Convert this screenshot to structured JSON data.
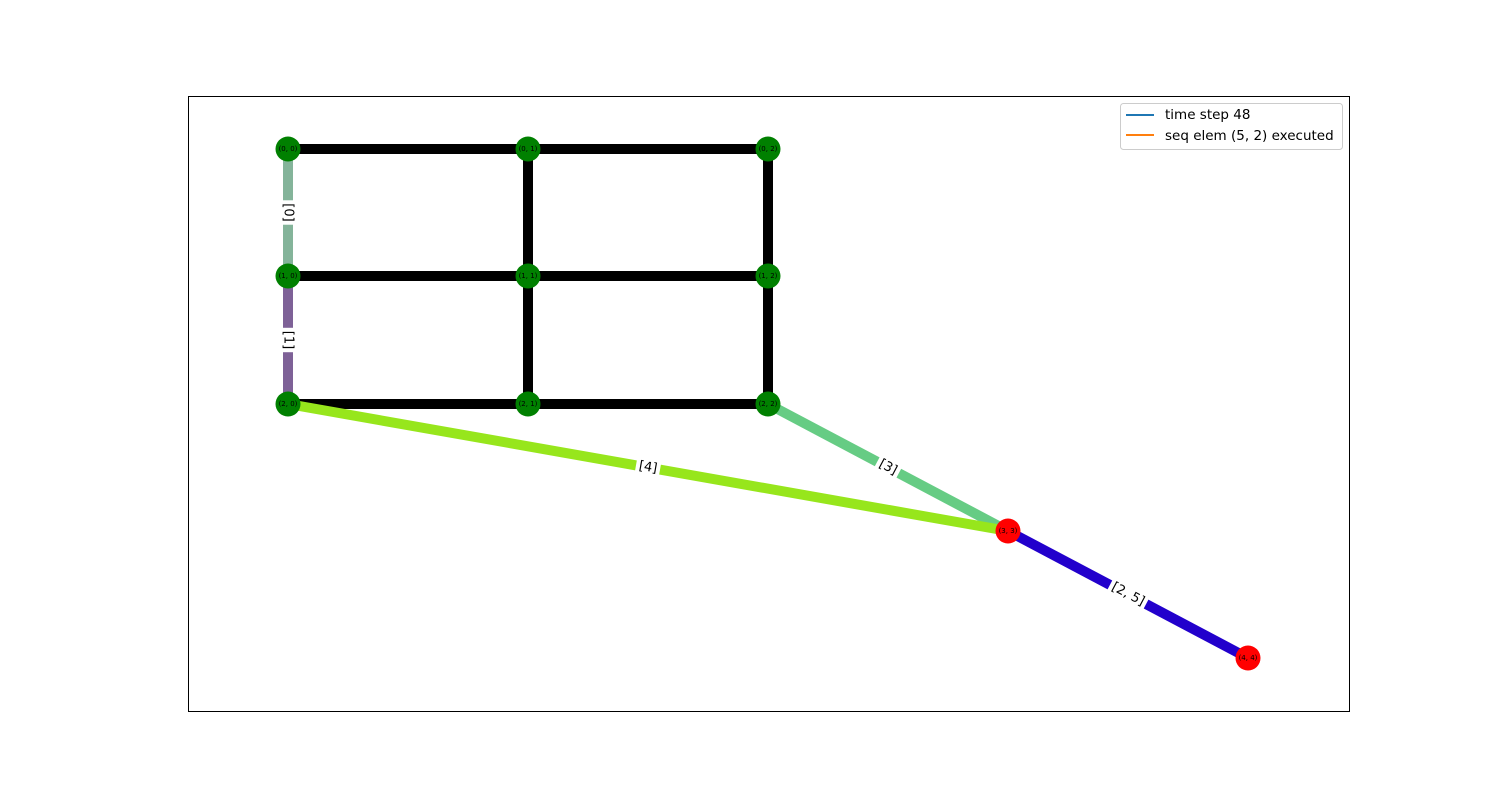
{
  "graph": {
    "nodes": [
      {
        "id": "n00",
        "label": "(0, 0)",
        "color": "#008000"
      },
      {
        "id": "n01",
        "label": "(0, 1)",
        "color": "#008000"
      },
      {
        "id": "n02",
        "label": "(0, 2)",
        "color": "#008000"
      },
      {
        "id": "n10",
        "label": "(1, 0)",
        "color": "#008000"
      },
      {
        "id": "n11",
        "label": "(1, 1)",
        "color": "#008000"
      },
      {
        "id": "n12",
        "label": "(1, 2)",
        "color": "#008000"
      },
      {
        "id": "n20",
        "label": "(2, 0)",
        "color": "#008000"
      },
      {
        "id": "n21",
        "label": "(2, 1)",
        "color": "#008000"
      },
      {
        "id": "n22",
        "label": "(2, 2)",
        "color": "#008000"
      },
      {
        "id": "n33",
        "label": "(3, 3)",
        "color": "#ff0000"
      },
      {
        "id": "n44",
        "label": "(4, 4)",
        "color": "#ff0000"
      }
    ],
    "edges": [
      {
        "from": "n00",
        "to": "n01",
        "color": "#000000",
        "label": ""
      },
      {
        "from": "n01",
        "to": "n02",
        "color": "#000000",
        "label": ""
      },
      {
        "from": "n10",
        "to": "n11",
        "color": "#000000",
        "label": ""
      },
      {
        "from": "n11",
        "to": "n12",
        "color": "#000000",
        "label": ""
      },
      {
        "from": "n20",
        "to": "n21",
        "color": "#000000",
        "label": ""
      },
      {
        "from": "n21",
        "to": "n22",
        "color": "#000000",
        "label": ""
      },
      {
        "from": "n01",
        "to": "n11",
        "color": "#000000",
        "label": ""
      },
      {
        "from": "n11",
        "to": "n21",
        "color": "#000000",
        "label": ""
      },
      {
        "from": "n02",
        "to": "n12",
        "color": "#000000",
        "label": ""
      },
      {
        "from": "n12",
        "to": "n22",
        "color": "#000000",
        "label": ""
      },
      {
        "from": "n00",
        "to": "n10",
        "color": "#84b49a",
        "label": "[0]"
      },
      {
        "from": "n10",
        "to": "n20",
        "color": "#7e6197",
        "label": "[1]"
      },
      {
        "from": "n22",
        "to": "n33",
        "color": "#66cc84",
        "label": "[3]"
      },
      {
        "from": "n20",
        "to": "n33",
        "color": "#97e61c",
        "label": "[4]"
      },
      {
        "from": "n33",
        "to": "n44",
        "color": "#2200cc",
        "label": "[2, 5]"
      }
    ]
  },
  "legend": {
    "items": [
      {
        "label": "time step 48",
        "color": "#1f77b4"
      },
      {
        "label": "seq elem (5, 2) executed",
        "color": "#ff7f0e"
      }
    ]
  }
}
